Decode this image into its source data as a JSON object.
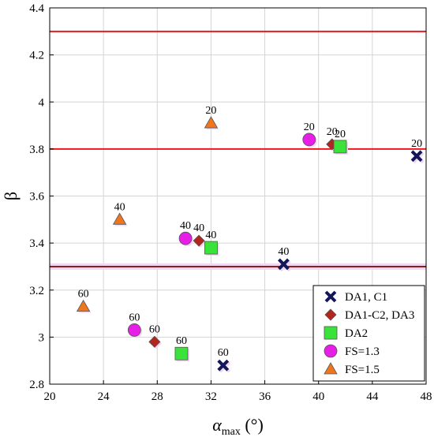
{
  "chart_data": {
    "type": "scatter",
    "title": "",
    "xlabel": "α",
    "xlabel_sub": "max",
    "xlabel_unit": " (°)",
    "ylabel": "β",
    "xlim": [
      20,
      48
    ],
    "ylim": [
      2.8,
      4.4
    ],
    "x_ticks": [
      20,
      24,
      28,
      32,
      36,
      40,
      44,
      48
    ],
    "y_ticks": [
      2.8,
      3.0,
      3.2,
      3.4,
      3.6,
      3.8,
      4.0,
      4.2,
      4.4
    ],
    "x_tick_labels": [
      "20",
      "24",
      "28",
      "32",
      "36",
      "40",
      "44",
      "48"
    ],
    "y_tick_labels": [
      "2.8",
      "3",
      "3.2",
      "3.4",
      "3.6",
      "3.8",
      "4",
      "4.2",
      "4.4"
    ],
    "grid": true,
    "legend_position": "bottom-right",
    "reference_lines": [
      {
        "y": 4.3,
        "color": "#e8181e"
      },
      {
        "y": 3.8,
        "color": "#e8181e"
      },
      {
        "y": 3.3,
        "color": "#8a1d1d"
      }
    ],
    "series": [
      {
        "name": "DA1, C1",
        "marker": "x",
        "color": "#14165a",
        "points": [
          {
            "x": 47.3,
            "y": 3.77,
            "label": "20"
          },
          {
            "x": 37.4,
            "y": 3.31,
            "label": "40"
          },
          {
            "x": 32.9,
            "y": 2.88,
            "label": "60"
          }
        ]
      },
      {
        "name": "DA1-C2, DA3",
        "marker": "diamond",
        "color": "#b3261e",
        "points": [
          {
            "x": 41.0,
            "y": 3.82,
            "label": "20"
          },
          {
            "x": 31.1,
            "y": 3.41,
            "label": "40"
          },
          {
            "x": 27.8,
            "y": 2.98,
            "label": "60"
          }
        ]
      },
      {
        "name": "DA2",
        "marker": "square",
        "color": "#39e339",
        "points": [
          {
            "x": 41.6,
            "y": 3.81,
            "label": "20"
          },
          {
            "x": 32.0,
            "y": 3.38,
            "label": "40"
          },
          {
            "x": 29.8,
            "y": 2.93,
            "label": "60"
          }
        ]
      },
      {
        "name": "FS=1.3",
        "marker": "circle",
        "color": "#e61ee6",
        "points": [
          {
            "x": 39.3,
            "y": 3.84,
            "label": "20"
          },
          {
            "x": 30.1,
            "y": 3.42,
            "label": "40"
          },
          {
            "x": 26.3,
            "y": 3.03,
            "label": "60"
          }
        ]
      },
      {
        "name": "FS=1.5",
        "marker": "triangle",
        "color": "#f0761e",
        "points": [
          {
            "x": 32.0,
            "y": 3.91,
            "label": "20"
          },
          {
            "x": 25.2,
            "y": 3.5,
            "label": "40"
          },
          {
            "x": 22.5,
            "y": 3.13,
            "label": "60"
          }
        ]
      }
    ]
  }
}
